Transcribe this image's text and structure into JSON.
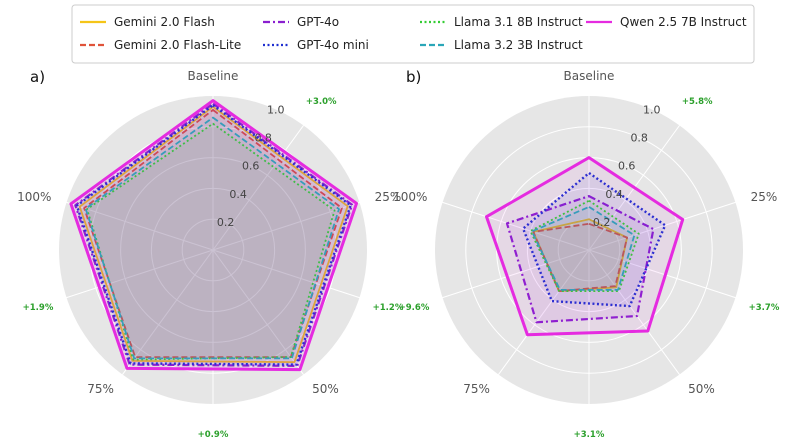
{
  "chart_data": {
    "type": "radar",
    "legend": {
      "placement": "top-center",
      "entries": [
        {
          "name": "Gemini 2.0 Flash",
          "color": "#f5c518",
          "dash": "solid"
        },
        {
          "name": "Gemini 2.0 Flash-Lite",
          "color": "#e0533a",
          "dash": "dashed"
        },
        {
          "name": "GPT-4o",
          "color": "#8a1fcf",
          "dash": "dashdot"
        },
        {
          "name": "GPT-4o mini",
          "color": "#1f2fd0",
          "dash": "dotted"
        },
        {
          "name": "Llama 3.1 8B Instruct",
          "color": "#33cc33",
          "dash": "dotted"
        },
        {
          "name": "Llama 3.2 3B Instruct",
          "color": "#2aa6b8",
          "dash": "dashed"
        },
        {
          "name": "Qwen 2.5 7B Instruct",
          "color": "#e52be0",
          "dash": "solid"
        }
      ]
    },
    "axes": [
      "Baseline",
      "25%",
      "50%",
      "75%",
      "100%"
    ],
    "radial_ticks": [
      "0.2",
      "0.4",
      "0.6",
      "0.8",
      "1.0"
    ],
    "rlim": [
      0,
      1.0
    ],
    "panels": [
      {
        "label": "a)",
        "deltas": [
          "+3.0%",
          "+1.2%",
          "+0.9%",
          "+1.9%"
        ],
        "series": [
          {
            "name": "Gemini 2.0 Flash",
            "values": [
              0.93,
              0.92,
              0.9,
              0.89,
              0.91
            ]
          },
          {
            "name": "Gemini 2.0 Flash-Lite",
            "values": [
              0.91,
              0.88,
              0.86,
              0.86,
              0.88
            ]
          },
          {
            "name": "GPT-4o",
            "values": [
              0.95,
              0.95,
              0.93,
              0.92,
              0.94
            ]
          },
          {
            "name": "GPT-4o mini",
            "values": [
              0.94,
              0.94,
              0.92,
              0.91,
              0.93
            ]
          },
          {
            "name": "Llama 3.1 8B Instruct",
            "values": [
              0.82,
              0.83,
              0.86,
              0.88,
              0.86
            ]
          },
          {
            "name": "Llama 3.2 3B Instruct",
            "values": [
              0.86,
              0.86,
              0.87,
              0.87,
              0.87
            ]
          },
          {
            "name": "Qwen 2.5 7B Instruct",
            "values": [
              0.97,
              0.98,
              0.96,
              0.95,
              0.97
            ]
          }
        ]
      },
      {
        "label": "b)",
        "deltas": [
          "+5.8%",
          "+3.7%",
          "+3.1%",
          "+9.6%"
        ],
        "series": [
          {
            "name": "Gemini 2.0 Flash",
            "values": [
              0.2,
              0.26,
              0.3,
              0.33,
              0.38
            ]
          },
          {
            "name": "Gemini 2.0 Flash-Lite",
            "values": [
              0.17,
              0.26,
              0.29,
              0.33,
              0.38
            ]
          },
          {
            "name": "GPT-4o",
            "values": [
              0.35,
              0.44,
              0.53,
              0.58,
              0.56
            ]
          },
          {
            "name": "GPT-4o mini",
            "values": [
              0.5,
              0.52,
              0.45,
              0.41,
              0.45
            ]
          },
          {
            "name": "Llama 3.1 8B Instruct",
            "values": [
              0.32,
              0.34,
              0.33,
              0.33,
              0.4
            ]
          },
          {
            "name": "Llama 3.2 3B Instruct",
            "values": [
              0.28,
              0.31,
              0.32,
              0.32,
              0.39
            ]
          },
          {
            "name": "Qwen 2.5 7B Instruct",
            "values": [
              0.6,
              0.64,
              0.65,
              0.68,
              0.7
            ]
          }
        ]
      }
    ]
  }
}
